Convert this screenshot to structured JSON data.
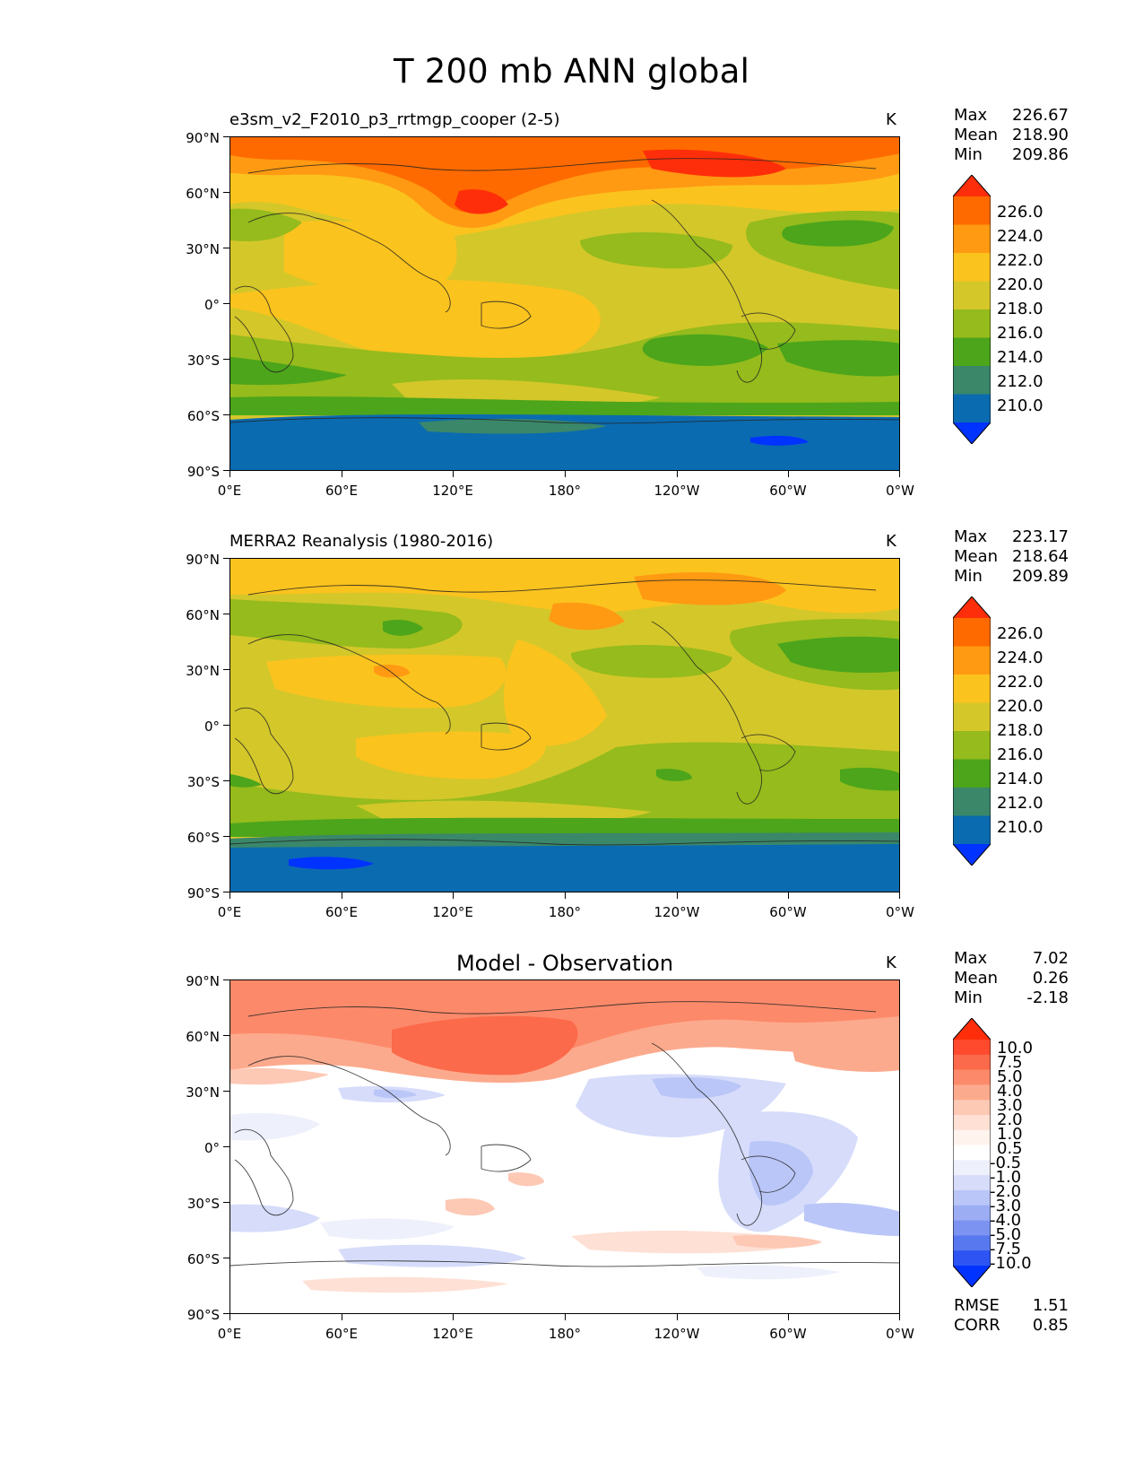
{
  "figure": {
    "title": "T 200 mb ANN global",
    "units": "K"
  },
  "axes": {
    "lat_labels": [
      "90°N",
      "60°N",
      "30°N",
      "0°",
      "30°S",
      "60°S",
      "90°S"
    ],
    "lon_labels": [
      "0°E",
      "60°E",
      "120°E",
      "180°",
      "120°W",
      "60°W",
      "0°W"
    ]
  },
  "panels": [
    {
      "title": "e3sm_v2_F2010_p3_rrtmgp_cooper (2-5)",
      "title_style": "left",
      "units": "K",
      "stats": [
        {
          "label": "Max",
          "value": "226.67"
        },
        {
          "label": "Mean",
          "value": "218.90"
        },
        {
          "label": "Min",
          "value": "209.86"
        }
      ],
      "colorbar_levels": [
        "226.0",
        "224.0",
        "222.0",
        "220.0",
        "218.0",
        "216.0",
        "214.0",
        "212.0",
        "210.0"
      ],
      "colorbar_colors": [
        "#ff2e0a",
        "#ff6a00",
        "#ff9a12",
        "#fbc31e",
        "#d4c72a",
        "#95bb1c",
        "#4ca51b",
        "#3a876a",
        "#0b6bb0",
        "#0033ff"
      ]
    },
    {
      "title": "MERRA2 Reanalysis (1980-2016)",
      "title_style": "left",
      "units": "K",
      "stats": [
        {
          "label": "Max",
          "value": "223.17"
        },
        {
          "label": "Mean",
          "value": "218.64"
        },
        {
          "label": "Min",
          "value": "209.89"
        }
      ],
      "colorbar_levels": [
        "226.0",
        "224.0",
        "222.0",
        "220.0",
        "218.0",
        "216.0",
        "214.0",
        "212.0",
        "210.0"
      ],
      "colorbar_colors": [
        "#ff2e0a",
        "#ff6a00",
        "#ff9a12",
        "#fbc31e",
        "#d4c72a",
        "#95bb1c",
        "#4ca51b",
        "#3a876a",
        "#0b6bb0",
        "#0033ff"
      ]
    },
    {
      "title": "Model - Observation",
      "title_style": "center",
      "units": "K",
      "stats": [
        {
          "label": "Max",
          "value": "7.02"
        },
        {
          "label": "Mean",
          "value": "0.26"
        },
        {
          "label": "Min",
          "value": "-2.18"
        }
      ],
      "colorbar_levels": [
        "10.0",
        "7.5",
        "5.0",
        "4.0",
        "3.0",
        "2.0",
        "1.0",
        "0.5",
        "-0.5",
        "-1.0",
        "-2.0",
        "-3.0",
        "-4.0",
        "-5.0",
        "-7.5",
        "-10.0"
      ],
      "colorbar_colors": [
        "#ff2e0a",
        "#ff4a2e",
        "#fb6a4a",
        "#fc8a6a",
        "#fcaa8d",
        "#fdc8b4",
        "#fee0d4",
        "#fff3ee",
        "#ffffff",
        "#eef0fc",
        "#d6dcfa",
        "#bac6f7",
        "#9cadf4",
        "#7d93f1",
        "#5878f0",
        "#2e55f3",
        "#0033ff"
      ],
      "extra_stats": [
        {
          "label": "RMSE",
          "value": "1.51"
        },
        {
          "label": "CORR",
          "value": "0.85"
        }
      ]
    }
  ]
}
